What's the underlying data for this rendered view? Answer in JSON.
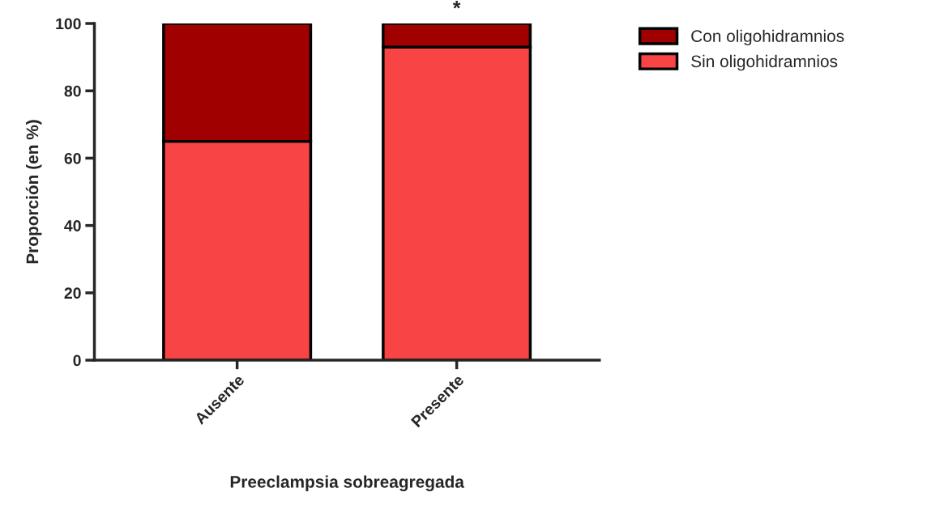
{
  "chart_data": {
    "type": "bar",
    "stacked": true,
    "xlabel": "Preeclampsia sobreagregada",
    "ylabel": "Proporción (en %)",
    "categories": [
      "Ausente",
      "Presente"
    ],
    "series": [
      {
        "name": "Sin oligohidramnios",
        "color": "#f84444",
        "values": [
          65,
          93
        ]
      },
      {
        "name": "Con oligohidramnios",
        "color": "#a00000",
        "values": [
          35,
          7
        ]
      }
    ],
    "ylim": [
      0,
      100
    ],
    "yticks": [
      0,
      20,
      40,
      60,
      80,
      100
    ],
    "annotations": [
      {
        "text": "*",
        "x": "Presente",
        "y": 100
      }
    ],
    "legend": "top right",
    "grid": false
  }
}
